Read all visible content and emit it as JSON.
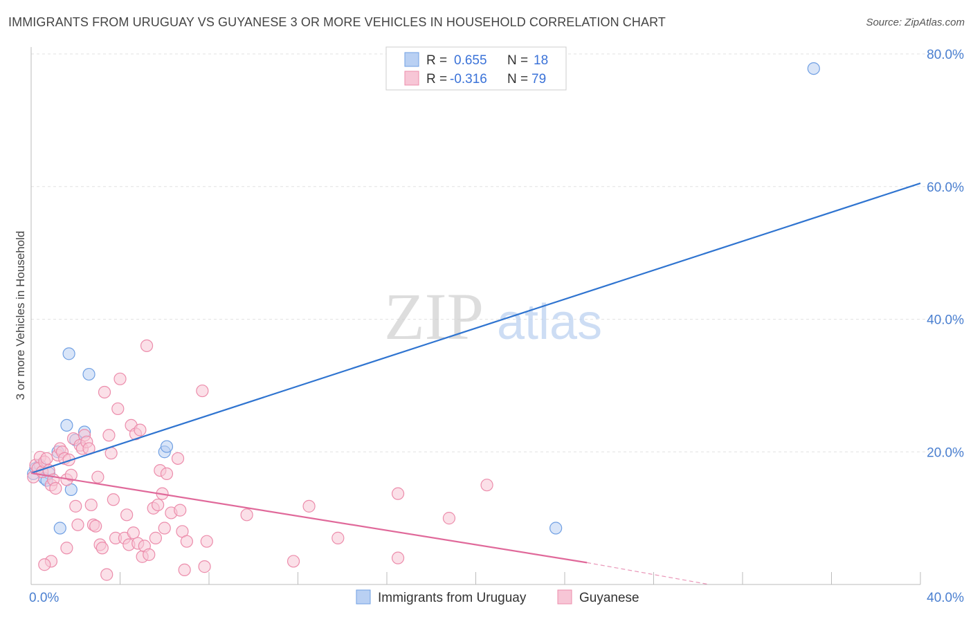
{
  "title": "IMMIGRANTS FROM URUGUAY VS GUYANESE 3 OR MORE VEHICLES IN HOUSEHOLD CORRELATION CHART",
  "source": "Source: ZipAtlas.com",
  "watermark": {
    "zip": "ZIP",
    "atlas": "atlas"
  },
  "chart_data": {
    "type": "scatter",
    "ylabel": "3 or more Vehicles in Household",
    "xlim": [
      0,
      0.4
    ],
    "ylim": [
      0,
      0.8
    ],
    "x_tick_labels": [
      "0.0%",
      "40.0%"
    ],
    "y_ticks": [
      0.2,
      0.4,
      0.6,
      0.8
    ],
    "y_tick_labels": [
      "20.0%",
      "40.0%",
      "60.0%",
      "80.0%"
    ],
    "grid": true,
    "legend_position": "top-center and bottom",
    "stats": [
      {
        "r_label": "R =",
        "r": "0.655",
        "n_label": "N =",
        "n": "18"
      },
      {
        "r_label": "R =",
        "r": "-0.316",
        "n_label": "N =",
        "n": "79"
      }
    ],
    "series": [
      {
        "name": "Immigrants from Uruguay",
        "color": "#6f9fe3",
        "fill": "#b9d0f3",
        "line_color": "#2f74d0",
        "trend": {
          "x0": 0.0,
          "y0": 0.168,
          "x1": 0.4,
          "y1": 0.605
        },
        "points": [
          [
            0.001,
            0.167
          ],
          [
            0.002,
            0.175
          ],
          [
            0.004,
            0.18
          ],
          [
            0.006,
            0.16
          ],
          [
            0.008,
            0.168
          ],
          [
            0.012,
            0.2
          ],
          [
            0.013,
            0.085
          ],
          [
            0.016,
            0.24
          ],
          [
            0.017,
            0.348
          ],
          [
            0.018,
            0.143
          ],
          [
            0.02,
            0.218
          ],
          [
            0.024,
            0.23
          ],
          [
            0.026,
            0.317
          ],
          [
            0.06,
            0.2
          ],
          [
            0.061,
            0.208
          ],
          [
            0.236,
            0.085
          ],
          [
            0.352,
            0.778
          ],
          [
            0.007,
            0.157
          ]
        ]
      },
      {
        "name": "Guyanese",
        "color": "#ec8cab",
        "fill": "#f7c6d6",
        "line_color": "#e0699a",
        "trend": {
          "x0": 0.0,
          "y0": 0.168,
          "x1": 0.25,
          "y1": 0.033
        },
        "trend_dashed": {
          "x0": 0.25,
          "y0": 0.033,
          "x1": 0.305,
          "y1": 0.0
        },
        "points": [
          [
            0.001,
            0.162
          ],
          [
            0.002,
            0.18
          ],
          [
            0.003,
            0.175
          ],
          [
            0.004,
            0.192
          ],
          [
            0.005,
            0.17
          ],
          [
            0.006,
            0.185
          ],
          [
            0.007,
            0.19
          ],
          [
            0.008,
            0.172
          ],
          [
            0.009,
            0.15
          ],
          [
            0.01,
            0.158
          ],
          [
            0.011,
            0.145
          ],
          [
            0.012,
            0.195
          ],
          [
            0.013,
            0.205
          ],
          [
            0.014,
            0.2
          ],
          [
            0.015,
            0.19
          ],
          [
            0.016,
            0.158
          ],
          [
            0.017,
            0.188
          ],
          [
            0.018,
            0.165
          ],
          [
            0.019,
            0.22
          ],
          [
            0.02,
            0.118
          ],
          [
            0.021,
            0.09
          ],
          [
            0.022,
            0.21
          ],
          [
            0.023,
            0.205
          ],
          [
            0.024,
            0.225
          ],
          [
            0.025,
            0.215
          ],
          [
            0.026,
            0.205
          ],
          [
            0.027,
            0.12
          ],
          [
            0.028,
            0.09
          ],
          [
            0.029,
            0.088
          ],
          [
            0.03,
            0.162
          ],
          [
            0.031,
            0.06
          ],
          [
            0.032,
            0.055
          ],
          [
            0.033,
            0.29
          ],
          [
            0.034,
            0.015
          ],
          [
            0.035,
            0.225
          ],
          [
            0.036,
            0.198
          ],
          [
            0.037,
            0.128
          ],
          [
            0.038,
            0.07
          ],
          [
            0.039,
            0.265
          ],
          [
            0.04,
            0.31
          ],
          [
            0.042,
            0.07
          ],
          [
            0.043,
            0.105
          ],
          [
            0.044,
            0.06
          ],
          [
            0.045,
            0.24
          ],
          [
            0.046,
            0.078
          ],
          [
            0.047,
            0.227
          ],
          [
            0.048,
            0.062
          ],
          [
            0.049,
            0.233
          ],
          [
            0.05,
            0.042
          ],
          [
            0.051,
            0.058
          ],
          [
            0.052,
            0.36
          ],
          [
            0.053,
            0.045
          ],
          [
            0.055,
            0.115
          ],
          [
            0.056,
            0.07
          ],
          [
            0.057,
            0.12
          ],
          [
            0.058,
            0.172
          ],
          [
            0.059,
            0.137
          ],
          [
            0.06,
            0.085
          ],
          [
            0.061,
            0.167
          ],
          [
            0.063,
            0.108
          ],
          [
            0.066,
            0.19
          ],
          [
            0.067,
            0.112
          ],
          [
            0.068,
            0.08
          ],
          [
            0.069,
            0.022
          ],
          [
            0.07,
            0.065
          ],
          [
            0.077,
            0.292
          ],
          [
            0.078,
            0.027
          ],
          [
            0.079,
            0.065
          ],
          [
            0.097,
            0.105
          ],
          [
            0.118,
            0.035
          ],
          [
            0.125,
            0.118
          ],
          [
            0.138,
            0.07
          ],
          [
            0.165,
            0.04
          ],
          [
            0.165,
            0.137
          ],
          [
            0.188,
            0.1
          ],
          [
            0.205,
            0.15
          ],
          [
            0.009,
            0.035
          ],
          [
            0.016,
            0.055
          ],
          [
            0.006,
            0.03
          ]
        ]
      }
    ]
  }
}
